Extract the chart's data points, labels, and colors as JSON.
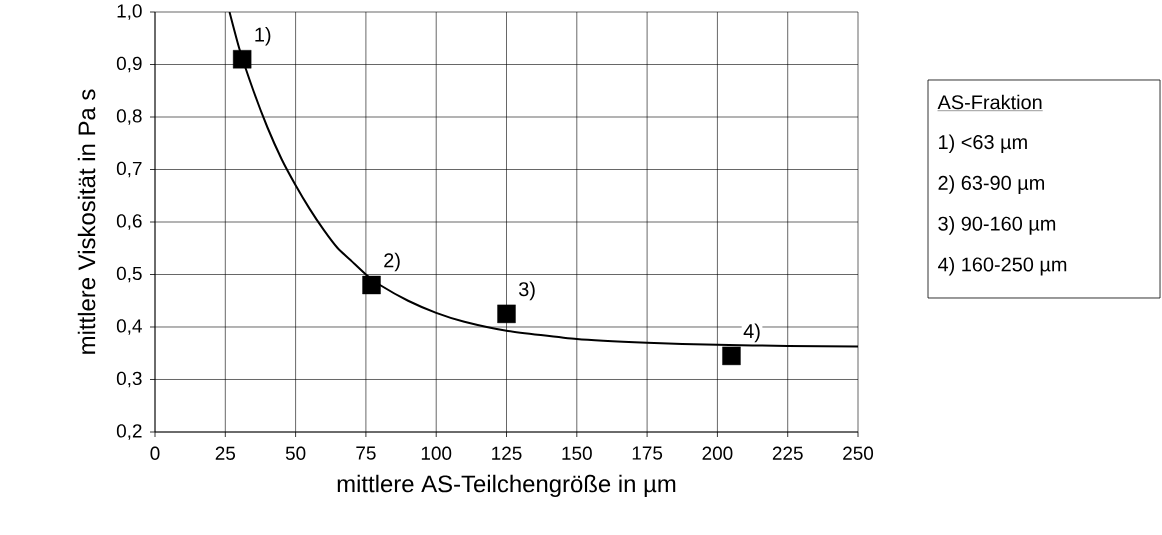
{
  "chart_data": {
    "type": "scatter",
    "xlabel": "mittlere AS-Teilchengröße in µm",
    "ylabel": "mittlere Viskosität in Pa s",
    "x": [
      31,
      77,
      125,
      205
    ],
    "series": [
      {
        "color": "#000000",
        "marker": "square",
        "values": [
          0.91,
          0.48,
          0.425,
          0.345
        ]
      },
      {
        "type": "line",
        "color": "#000000",
        "marker": "none",
        "line_style": "solid",
        "x": [
          26.5,
          30,
          35,
          40,
          45,
          50,
          55,
          60,
          65,
          70,
          75,
          80,
          90,
          100,
          110,
          125,
          150,
          175,
          200,
          225,
          250
        ],
        "values": [
          1.0,
          0.93,
          0.85,
          0.78,
          0.72,
          0.67,
          0.625,
          0.585,
          0.55,
          0.525,
          0.5,
          0.48,
          0.45,
          0.427,
          0.41,
          0.393,
          0.377,
          0.37,
          0.366,
          0.364,
          0.363
        ]
      }
    ],
    "xlim": [
      0,
      250
    ],
    "xticks": [
      0,
      25,
      50,
      75,
      100,
      125,
      150,
      175,
      200,
      225,
      250
    ],
    "ylim": [
      0.2,
      1.0
    ],
    "yticks": [
      {
        "value": 0.2,
        "label": "0,2"
      },
      {
        "value": 0.3,
        "label": "0,3"
      },
      {
        "value": 0.4,
        "label": "0,4"
      },
      {
        "value": 0.5,
        "label": "0,5"
      },
      {
        "value": 0.6,
        "label": "0,6"
      },
      {
        "value": 0.7,
        "label": "0,7"
      },
      {
        "value": 0.8,
        "label": "0,8"
      },
      {
        "value": 0.9,
        "label": "0,9"
      },
      {
        "value": 1.0,
        "label": "1,0"
      }
    ],
    "grid": true,
    "annotations": [
      {
        "text": "1)",
        "x": 31,
        "y": 0.91
      },
      {
        "text": "2)",
        "x": 77,
        "y": 0.48
      },
      {
        "text": "3)",
        "x": 125,
        "y": 0.425
      },
      {
        "text": "4)",
        "x": 205,
        "y": 0.345
      },
      "AS-Fraktion",
      "1) <63 µm",
      "2) 63-90 µm",
      "3) 90-160 µm",
      "4) 160-250 µm"
    ]
  }
}
